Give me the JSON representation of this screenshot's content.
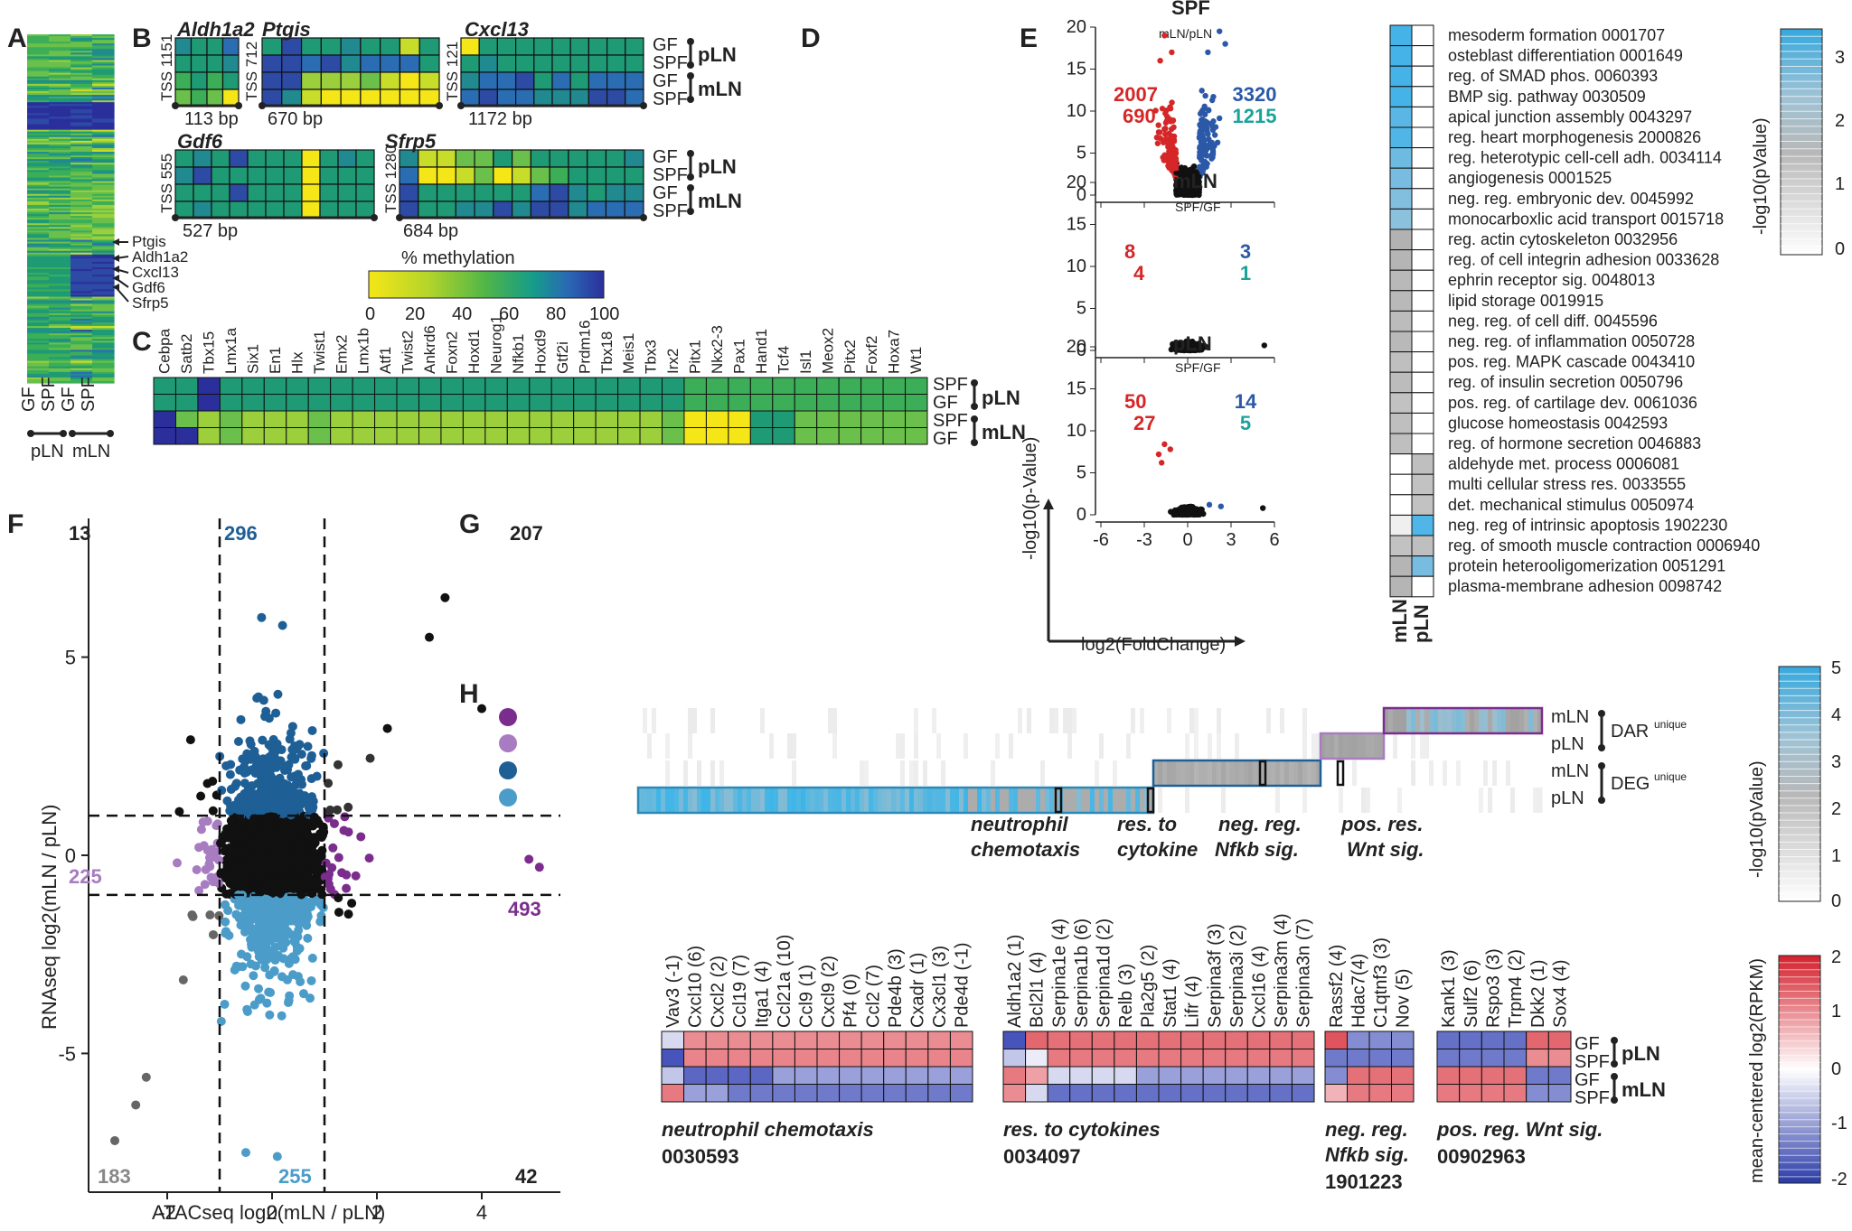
{
  "panels": {
    "A": "A",
    "B": "B",
    "C": "C",
    "D": "D",
    "E": "E",
    "F": "F",
    "G": "G",
    "H": "H"
  },
  "colors": {
    "red": "#d62728",
    "blue": "#2b59a8",
    "teal": "#1aa39a",
    "purple": "#7b2d8e",
    "lightpurple": "#a77cc0",
    "darkblue": "#1e5f96",
    "lightblue": "#4b9cc9",
    "grey": "#666666",
    "black": "#111111"
  },
  "panelA": {
    "x_labels": [
      "GF",
      "SPF",
      "GF",
      "SPF"
    ],
    "group_labels": [
      "pLN",
      "mLN"
    ],
    "gene_labels": [
      "Ptgis",
      "Aldh1a2",
      "Cxcl13",
      "Gdf6",
      "Sfrp5"
    ]
  },
  "panelB": {
    "genes": [
      {
        "name": "Aldh1a2",
        "tss": "TSS 1151",
        "bp": "113 bp"
      },
      {
        "name": "Ptgis",
        "tss": "TSS 712",
        "bp": "670 bp"
      },
      {
        "name": "Cxcl13",
        "tss": "TSS 121",
        "bp": "1172 bp"
      },
      {
        "name": "Gdf6",
        "tss": "TSS 555",
        "bp": "527 bp"
      },
      {
        "name": "Sfrp5",
        "tss": "TSS 1280",
        "bp": "684 bp"
      }
    ],
    "row_labels": [
      "GF",
      "SPF",
      "GF",
      "SPF"
    ],
    "group_labels": [
      "pLN",
      "mLN"
    ],
    "legend_title": "% methylation",
    "legend_ticks": [
      "0",
      "20",
      "40",
      "60",
      "80",
      "100"
    ]
  },
  "panelC": {
    "genes": [
      "Cebpa",
      "Satb2",
      "Tbx15",
      "Lmx1a",
      "Six1",
      "En1",
      "Hlx",
      "Twist1",
      "Emx2",
      "Lmx1b",
      "Atf1",
      "Twist2",
      "Ankrd6",
      "Foxn2",
      "Hoxd1",
      "Neurog1",
      "Nfkb1",
      "Hoxd9",
      "Gtf2i",
      "Prdm16",
      "Tbx18",
      "Meis1",
      "Tbx3",
      "Irx2",
      "Pitx1",
      "Nkx2-3",
      "Pax1",
      "Hand1",
      "Tcf4",
      "Isl1",
      "Meox2",
      "Pitx2",
      "Foxf2",
      "Hoxa7",
      "Wt1"
    ],
    "row_labels": [
      "SPF",
      "GF",
      "SPF",
      "GF"
    ],
    "group_labels": [
      "pLN",
      "mLN"
    ]
  },
  "panelD": {
    "plots": [
      {
        "title": "SPF",
        "sub": "mLN/pLN",
        "up_total": "3320",
        "up_fc": "1215",
        "down_total": "2007",
        "down_fc": "690"
      },
      {
        "title": "mLN",
        "sub": "SPF/GF",
        "up_total": "3",
        "up_fc": "1",
        "down_total": "8",
        "down_fc": "4"
      },
      {
        "title": "pLN",
        "sub": "SPF/GF",
        "up_total": "14",
        "up_fc": "5",
        "down_total": "50",
        "down_fc": "27"
      }
    ],
    "y_ticks": [
      "0",
      "5",
      "10",
      "15",
      "20"
    ],
    "x_ticks": [
      "-6",
      "-3",
      "0",
      "3",
      "6"
    ],
    "ylabel": "-log10(p-Value)",
    "xlabel": "log2(FoldChange)"
  },
  "panelE": {
    "terms": [
      "mesoderm formation 0001707",
      "osteblast differentiation 0001649",
      "reg. of SMAD phos. 0060393",
      "BMP sig. pathway 0030509",
      "apical junction assembly 0043297",
      "reg. heart morphogenesis 2000826",
      "reg. heterotypic cell-cell adh. 0034114",
      "angiogenesis 0001525",
      "neg. reg. embryonic dev. 0045992",
      "monocarboxlic acid transport 0015718",
      "reg. actin cytoskeleton 0032956",
      "reg. of cell integrin adhesion 0033628",
      "ephrin receptor sig. 0048013",
      "lipid storage 0019915",
      "neg. reg. of cell diff. 0045596",
      "neg. reg. of inflammation 0050728",
      "pos. reg. MAPK cascade 0043410",
      "reg. of insulin secretion 0050796",
      "pos. reg. of cartilage dev. 0061036",
      "glucose homeostasis 0042593",
      "reg. of hormone secretion 0046883",
      "aldehyde met. process 0006081",
      "multi cellular stress res. 0033555",
      "det. mechanical stimulus 0050974",
      "neg. reg of intrinsic apoptosis 1902230",
      "reg. of smooth muscle contraction 0006940",
      "protein heterooligomerization 0051291",
      "plasma-membrane adhesion 0098742"
    ],
    "col_labels": [
      "mLN",
      "pLN"
    ],
    "legend_title": "-log10(pValue)",
    "legend_ticks": [
      "0",
      "1",
      "2",
      "3"
    ]
  },
  "chart_data": {
    "type": "scatter",
    "title": "",
    "xlabel": "ATACseq log2(mLN / pLN)",
    "ylabel": "RNAseq log2(mLN / pLN)",
    "xlim": [
      -3.5,
      5.5
    ],
    "ylim": [
      -8.5,
      8.5
    ],
    "x_ticks": [
      -2,
      0,
      2,
      4
    ],
    "y_ticks": [
      -5,
      0,
      5
    ],
    "thresholds": {
      "x": [
        -1,
        1
      ],
      "y": [
        -1,
        1
      ]
    },
    "quadrant_counts": {
      "top_left": "13",
      "top_mid": "296",
      "top_right": "207",
      "mid_left": "225",
      "mid_right": "493",
      "bottom_left": "183",
      "bottom_mid": "255",
      "bottom_right": "42"
    }
  },
  "panelG": {
    "row_labels": [
      "mLN",
      "pLN",
      "mLN",
      "pLN"
    ],
    "group_labels": [
      "DAR",
      "DEG"
    ],
    "group_sup": "unique",
    "annotations": [
      {
        "l1": "neutrophil",
        "l2": "chemotaxis"
      },
      {
        "l1": "res. to",
        "l2": "cytokine"
      },
      {
        "l1": "neg. reg.",
        "l2": "Nfkb sig."
      },
      {
        "l1": "pos. res.",
        "l2": "Wnt sig."
      }
    ],
    "legend_title": "-log10(pValue)",
    "legend_ticks": [
      "0",
      "1",
      "2",
      "3",
      "4",
      "5"
    ]
  },
  "panelH": {
    "blocks": [
      {
        "genes": [
          "Vav3 (-1)",
          "Cxcl10 (6)",
          "Cxcl2 (2)",
          "Ccl19 (7)",
          "Itga1 (4)",
          "Ccl21a (10)",
          "Ccl9 (1)",
          "Cxcl9 (2)",
          "Pf4 (0)",
          "Ccl2 (7)",
          "Pde4b (3)",
          "Cxadr (1)",
          "Cx3cl1 (3)",
          "Pde4d (-1)"
        ],
        "t1": "neutrophil chemotaxis",
        "t2": "0030593"
      },
      {
        "genes": [
          "Aldh1a2 (1)",
          "Bcl2l1 (4)",
          "Serpina1e (4)",
          "Serpina1b (6)",
          "Serpina1d (2)",
          "Relb (3)",
          "Pla2g5 (2)",
          "Stat1 (4)",
          "Lifr (4)",
          "Serpina3f (3)",
          "Serpina3i (2)",
          "Cxcl16 (4)",
          "Serpina3m (4)",
          "Serpina3n (7)"
        ],
        "t1": "res. to cytokines",
        "t2": "0034097"
      },
      {
        "genes": [
          "Rassf2 (4)",
          "Hdac7(4)",
          "C1qtnf3 (3)",
          "Nov (5)"
        ],
        "t1": "neg. reg.",
        "t1b": "Nfkb sig.",
        "t2": "1901223"
      },
      {
        "genes": [
          "Kank1 (3)",
          "Sulf2 (6)",
          "Rspo3 (3)",
          "Trpm4 (2)",
          "Dkk2 (1)",
          "Sox4 (4)"
        ],
        "t1": "pos. reg. Wnt sig.",
        "t2": "00902963"
      }
    ],
    "row_labels": [
      "GF",
      "SPF",
      "GF",
      "SPF"
    ],
    "group_labels": [
      "pLN",
      "mLN"
    ],
    "legend_title": "mean-centered log2(RPKM)",
    "legend_ticks": [
      "2",
      "1",
      "0",
      "-1",
      "-2"
    ]
  }
}
